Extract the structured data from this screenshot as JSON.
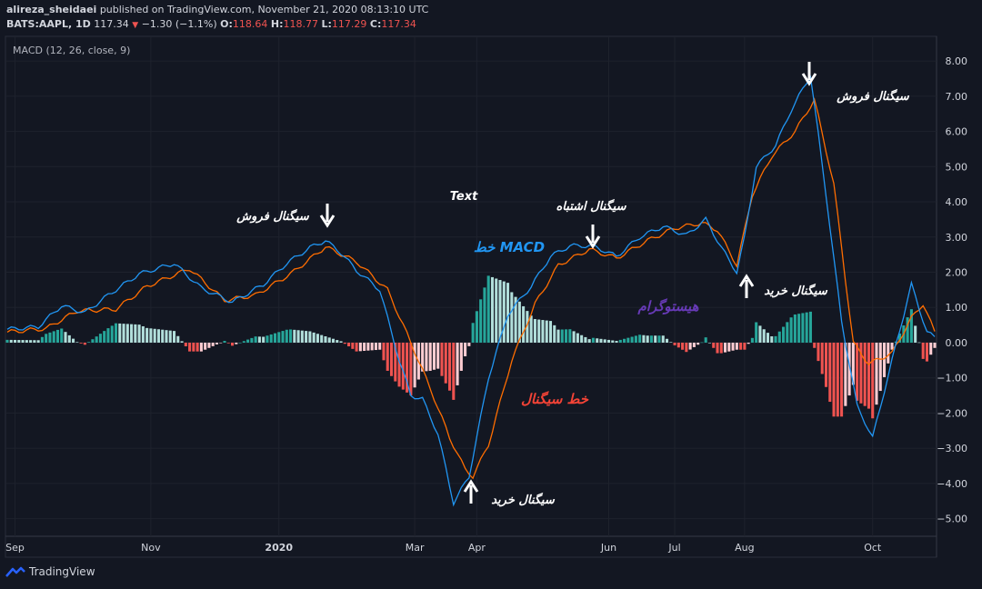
{
  "header": {
    "publisher": "alireza_sheidaei",
    "published_text": "published on TradingView.com, November 21, 2020 08:13:10 UTC",
    "symbol": "BATS:AAPL, 1D",
    "last": "117.34",
    "change": "−1.30 (−1.1%)",
    "o_label": "O:",
    "o": "118.64",
    "h_label": "H:",
    "h": "118.77",
    "l_label": "L:",
    "l": "117.29",
    "c_label": "C:",
    "c": "117.34"
  },
  "indicator_label": "MACD (12, 26, close, 9)",
  "footer": {
    "brand": "TradingView"
  },
  "colors": {
    "background": "#131722",
    "macd_line": "#2196f3",
    "signal_line": "#ff6d00",
    "hist_pos_strong": "#26a69a",
    "hist_pos_weak": "#b2dfdb",
    "hist_neg_strong": "#ef5350",
    "hist_neg_weak": "#ffcdd2",
    "annotation_white": "#ffffff",
    "annotation_blue": "#2196f3",
    "annotation_red": "#f44336",
    "annotation_purple": "#673ab7"
  },
  "annotations": {
    "sell1": "سیگنال فروش",
    "sell2": "سیگنال فروش",
    "false_signal": "سیگنال اشتباه",
    "buy1": "سیگنال خرید",
    "buy2": "سیگنال خرید",
    "text": "Text",
    "macd_line": "خط MACD",
    "signal_line": "خط سیگنال",
    "histogram": "هیستوگرام"
  },
  "chart_data": {
    "type": "line",
    "title": "MACD (12, 26, close, 9)",
    "ylim": [
      -5.5,
      8.7
    ],
    "y_ticks": [
      "8.00",
      "7.00",
      "6.00",
      "5.00",
      "4.00",
      "3.00",
      "2.00",
      "1.00",
      "0.00",
      "−1.00",
      "−2.00",
      "−3.00",
      "−4.00",
      "−5.00"
    ],
    "x_ticks": [
      "Sep",
      "Nov",
      "2020",
      "Mar",
      "Apr",
      "Jun",
      "Jul",
      "Aug",
      "Oct"
    ],
    "x_tick_idx": [
      2,
      37,
      70,
      105,
      121,
      155,
      172,
      190,
      223
    ],
    "n": 240,
    "macd_keys": [
      [
        0,
        0.38
      ],
      [
        8,
        0.45
      ],
      [
        14,
        1.05
      ],
      [
        20,
        0.85
      ],
      [
        26,
        1.35
      ],
      [
        34,
        1.95
      ],
      [
        43,
        2.25
      ],
      [
        50,
        1.55
      ],
      [
        58,
        1.15
      ],
      [
        66,
        1.65
      ],
      [
        72,
        2.25
      ],
      [
        78,
        2.7
      ],
      [
        82,
        2.9
      ],
      [
        86,
        2.55
      ],
      [
        90,
        2.05
      ],
      [
        96,
        1.5
      ],
      [
        101,
        -0.5
      ],
      [
        104,
        -1.5
      ],
      [
        107,
        -1.6
      ],
      [
        111,
        -2.6
      ],
      [
        115,
        -4.55
      ],
      [
        119,
        -3.8
      ],
      [
        124,
        -1.0
      ],
      [
        129,
        0.8
      ],
      [
        135,
        1.6
      ],
      [
        140,
        2.45
      ],
      [
        145,
        2.75
      ],
      [
        151,
        2.75
      ],
      [
        157,
        2.45
      ],
      [
        163,
        3.0
      ],
      [
        169,
        3.3
      ],
      [
        175,
        3.05
      ],
      [
        180,
        3.5
      ],
      [
        184,
        2.7
      ],
      [
        188,
        2.0
      ],
      [
        190,
        3.0
      ],
      [
        193,
        5.0
      ],
      [
        198,
        5.6
      ],
      [
        202,
        6.6
      ],
      [
        207,
        7.6
      ],
      [
        211,
        4.2
      ],
      [
        215,
        0.6
      ],
      [
        219,
        -1.8
      ],
      [
        223,
        -2.7
      ],
      [
        228,
        -0.5
      ],
      [
        233,
        1.65
      ],
      [
        237,
        0.3
      ],
      [
        239,
        0.15
      ]
    ],
    "signal_keys": [
      [
        0,
        0.3
      ],
      [
        10,
        0.4
      ],
      [
        18,
        0.9
      ],
      [
        28,
        0.95
      ],
      [
        36,
        1.6
      ],
      [
        47,
        2.1
      ],
      [
        56,
        1.2
      ],
      [
        64,
        1.35
      ],
      [
        73,
        1.95
      ],
      [
        82,
        2.72
      ],
      [
        90,
        2.3
      ],
      [
        98,
        1.5
      ],
      [
        104,
        0.0
      ],
      [
        109,
        -1.3
      ],
      [
        114,
        -2.7
      ],
      [
        118,
        -3.6
      ],
      [
        120,
        -3.8
      ],
      [
        124,
        -2.9
      ],
      [
        130,
        -0.5
      ],
      [
        136,
        1.1
      ],
      [
        142,
        2.2
      ],
      [
        150,
        2.65
      ],
      [
        157,
        2.4
      ],
      [
        165,
        2.9
      ],
      [
        172,
        3.25
      ],
      [
        179,
        3.4
      ],
      [
        183,
        3.2
      ],
      [
        188,
        2.2
      ],
      [
        192,
        4.2
      ],
      [
        197,
        5.3
      ],
      [
        203,
        6.0
      ],
      [
        208,
        6.9
      ],
      [
        213,
        4.5
      ],
      [
        218,
        0.0
      ],
      [
        222,
        -0.6
      ],
      [
        228,
        -0.3
      ],
      [
        233,
        0.7
      ],
      [
        236,
        1.1
      ],
      [
        239,
        0.3
      ]
    ]
  }
}
